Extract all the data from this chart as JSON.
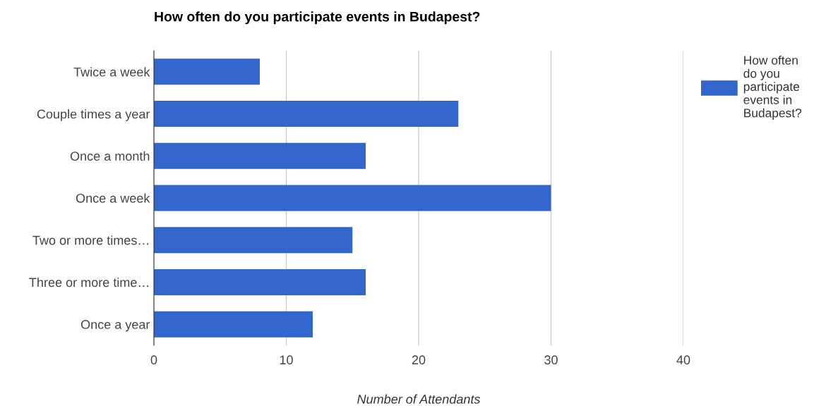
{
  "chart_data": {
    "type": "bar",
    "orientation": "horizontal",
    "title": "How often do you participate events in Budapest?",
    "xlabel": "Number of Attendants",
    "categories": [
      "Twice a week",
      "Couple times a year",
      "Once a month",
      "Once a week",
      "Two or more times…",
      "Three or more time…",
      "Once a year"
    ],
    "series": [
      {
        "name": "How often do you participate events in Budapest?",
        "color": "#3366cc",
        "values": [
          8,
          23,
          16,
          30,
          15,
          16,
          12
        ]
      }
    ],
    "xlim": [
      0,
      40
    ],
    "xticks": [
      0,
      10,
      20,
      30,
      40
    ],
    "grid": "x",
    "legend": "top right"
  }
}
